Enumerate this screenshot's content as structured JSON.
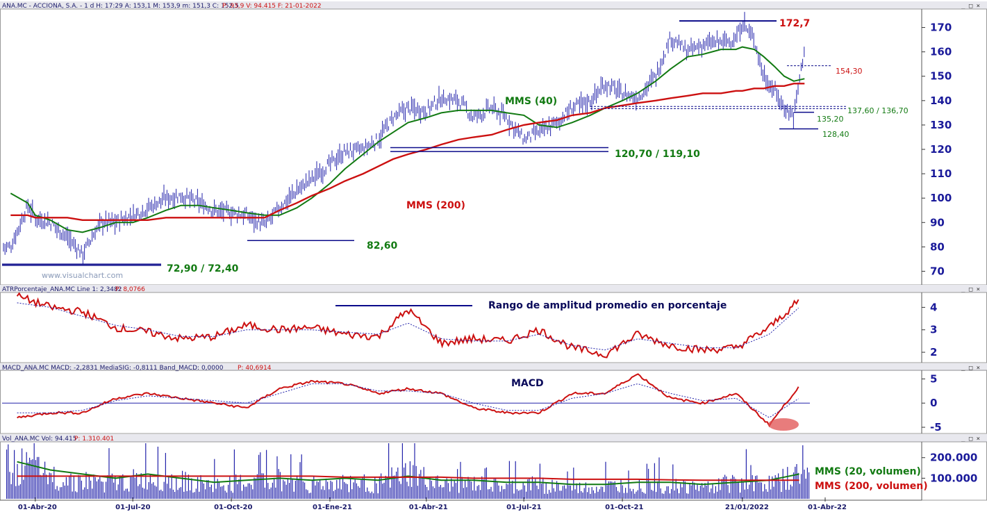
{
  "window": {
    "controls": "_ □ ×"
  },
  "panels": [
    {
      "id": "price",
      "header": "ANA.MC - ACCIONA, S.A. - 1 d H: 17:29 A: 153,1 M: 153,9 m: 151,3 C: 152,5",
      "header_red": "P: 93,9 V: 94.415 F: 21-01-2022",
      "y_ticks": [
        "70",
        "80",
        "90",
        "100",
        "110",
        "120",
        "130",
        "140",
        "150",
        "160",
        "170"
      ],
      "watermark": "www.visualchart.com"
    },
    {
      "id": "atr",
      "header": "ATRPorcentaje_ANA.MC Line 1: 2,3482",
      "header_red": "P: 8,0766",
      "title": "Rango de amplitud promedio en porcentaje",
      "y_ticks": [
        "2",
        "3",
        "4"
      ]
    },
    {
      "id": "macd",
      "header": "MACD_ANA.MC MACD: -2,2831 MediaSIG: -0,8111 Band_MACD: 0,0000",
      "header_red": "P: 40,6914",
      "title": "MACD",
      "y_ticks": [
        "-5",
        "0",
        "5"
      ]
    },
    {
      "id": "volume",
      "header": "Vol_ANA.MC Vol: 94.415",
      "header_red": "P: 1.310.401",
      "y_ticks": [
        "100.000",
        "200.000"
      ],
      "legend": [
        {
          "label": "MMS (20, volumen)",
          "color": "#127a12"
        },
        {
          "label": "MMS (200, volumen)",
          "color": "#cc1010"
        }
      ]
    }
  ],
  "x_ticks": [
    "01-Abr-20",
    "01-Jul-20",
    "01-Oct-20",
    "01-Ene-21",
    "01-Abr-21",
    "01-Jul-21",
    "01-Oct-21",
    "21/01/2022",
    "01-Abr-22"
  ],
  "annotations": {
    "high": "172,7",
    "r1": "154,30",
    "s1": "137,60 / 136,70",
    "s2": "135,20",
    "s3": "128,40",
    "s4": "120,70 / 119,10",
    "s5": "82,60",
    "s6": "72,90 / 72,40",
    "mms40": "MMS (40)",
    "mms200": "MMS (200)"
  },
  "colors": {
    "bars": "#2222aa",
    "mms40": "#127a12",
    "mms200": "#cc1010",
    "axis": "#1a1a9a",
    "levels": "#0a0a8a"
  },
  "chart_data": [
    {
      "type": "ohlc",
      "panel": "price",
      "ylim": [
        65,
        177
      ],
      "x": [
        "2020-03-09",
        "2020-03-25",
        "2020-04-01",
        "2020-04-15",
        "2020-05-01",
        "2020-05-15",
        "2020-06-01",
        "2020-06-15",
        "2020-07-01",
        "2020-07-15",
        "2020-08-01",
        "2020-08-15",
        "2020-09-01",
        "2020-09-15",
        "2020-10-01",
        "2020-10-15",
        "2020-11-01",
        "2020-11-15",
        "2020-12-01",
        "2020-12-15",
        "2021-01-01",
        "2021-01-15",
        "2021-02-01",
        "2021-02-15",
        "2021-03-01",
        "2021-03-15",
        "2021-04-01",
        "2021-04-15",
        "2021-05-01",
        "2021-05-15",
        "2021-06-01",
        "2021-06-15",
        "2021-07-01",
        "2021-07-15",
        "2021-08-01",
        "2021-08-15",
        "2021-09-01",
        "2021-09-15",
        "2021-10-01",
        "2021-10-15",
        "2021-11-01",
        "2021-11-15",
        "2021-12-01",
        "2021-12-15",
        "2022-01-01",
        "2022-01-15",
        "2022-01-21",
        "2022-02-01",
        "2022-02-10",
        "2022-02-20",
        "2022-03-01",
        "2022-03-10",
        "2022-03-20"
      ],
      "close": [
        80,
        97,
        92,
        90,
        84,
        77,
        90,
        90,
        93,
        96,
        100,
        101,
        98,
        95,
        94,
        93,
        89,
        96,
        103,
        108,
        114,
        119,
        120,
        124,
        133,
        137,
        136,
        141,
        140,
        133,
        137,
        133,
        124,
        127,
        131,
        137,
        140,
        147,
        143,
        141,
        150,
        166,
        160,
        163,
        164,
        165,
        172,
        165,
        150,
        144,
        137,
        134,
        162
      ],
      "series_overlays": [
        {
          "name": "MMS (40)",
          "values": [
            102,
            98,
            93,
            91,
            87,
            86,
            88,
            90,
            90,
            92,
            95,
            97,
            97,
            96,
            95,
            94,
            93,
            93,
            96,
            100,
            106,
            112,
            118,
            123,
            127,
            131,
            133,
            135,
            136,
            136,
            136,
            135,
            134,
            130,
            129,
            131,
            134,
            137,
            140,
            143,
            148,
            153,
            158,
            159,
            161,
            161,
            162,
            161,
            158,
            154,
            150,
            148,
            149
          ]
        },
        {
          "name": "MMS (200)",
          "values": [
            93,
            93,
            92,
            92,
            92,
            91,
            91,
            91,
            91,
            91,
            92,
            92,
            92,
            92,
            92,
            92,
            92,
            95,
            98,
            101,
            104,
            107,
            110,
            113,
            116,
            118,
            120,
            122,
            124,
            125,
            126,
            128,
            130,
            131,
            132,
            134,
            135,
            137,
            138,
            139,
            140,
            141,
            142,
            143,
            143,
            144,
            144,
            145,
            145,
            146,
            146,
            147,
            147
          ]
        }
      ],
      "levels": [
        172.7,
        154.3,
        137.6,
        136.7,
        135.2,
        128.4,
        120.7,
        119.1,
        82.6,
        72.9,
        72.4
      ]
    },
    {
      "type": "line",
      "panel": "atr",
      "title": "Rango de amplitud promedio en porcentaje",
      "ylim": [
        1.6,
        4.6
      ],
      "x": [
        "2020-03",
        "2020-04",
        "2020-05",
        "2020-06",
        "2020-07",
        "2020-08",
        "2020-09",
        "2020-10",
        "2020-11",
        "2020-12",
        "2021-01",
        "2021-02",
        "2021-03",
        "2021-04",
        "2021-05",
        "2021-06",
        "2021-07",
        "2021-08",
        "2021-09",
        "2021-10",
        "2021-11",
        "2021-12",
        "2022-01",
        "2022-02",
        "2022-03"
      ],
      "series": [
        {
          "values": [
            4.5,
            4.0,
            3.8,
            3.1,
            2.9,
            2.6,
            2.7,
            3.2,
            3.0,
            3.1,
            2.8,
            2.7,
            3.9,
            2.4,
            2.6,
            2.5,
            3.0,
            2.2,
            1.9,
            2.8,
            2.3,
            2.1,
            2.2,
            3.1,
            4.3
          ]
        },
        {
          "values": [
            4.2,
            4.0,
            3.6,
            3.2,
            3.0,
            2.7,
            2.7,
            3.0,
            3.0,
            3.0,
            2.9,
            2.8,
            3.3,
            2.6,
            2.5,
            2.5,
            2.8,
            2.3,
            2.1,
            2.6,
            2.4,
            2.2,
            2.2,
            2.8,
            4.0
          ]
        }
      ]
    },
    {
      "type": "line",
      "panel": "macd",
      "title": "MACD",
      "ylim": [
        -6,
        6.5
      ],
      "x": [
        "2020-03",
        "2020-04",
        "2020-05",
        "2020-06",
        "2020-07",
        "2020-08",
        "2020-09",
        "2020-10",
        "2020-11",
        "2020-12",
        "2021-01",
        "2021-02",
        "2021-03",
        "2021-04",
        "2021-05",
        "2021-06",
        "2021-07",
        "2021-08",
        "2021-09",
        "2021-10",
        "2021-11",
        "2021-12",
        "2022-01",
        "2022-02",
        "2022-03"
      ],
      "series": [
        {
          "values": [
            -3,
            -2,
            -2,
            1,
            2,
            1,
            0,
            -1,
            3,
            4.5,
            4,
            2,
            3,
            2,
            -1,
            -2,
            -2,
            2,
            2,
            6,
            1,
            0,
            2,
            -4.5,
            3.5
          ]
        },
        {
          "values": [
            -2,
            -2,
            -1.5,
            0.5,
            1.5,
            1,
            0.5,
            0,
            2,
            4,
            4,
            2.5,
            2.5,
            2,
            0,
            -1.5,
            -1.5,
            1,
            2,
            4,
            2,
            0.5,
            1,
            -3,
            1
          ]
        }
      ]
    },
    {
      "type": "bar",
      "panel": "volume",
      "ylim": [
        0,
        270000
      ],
      "x": [
        "2020-03",
        "2020-04",
        "2020-05",
        "2020-06",
        "2020-07",
        "2020-08",
        "2020-09",
        "2020-10",
        "2020-11",
        "2020-12",
        "2021-01",
        "2021-02",
        "2021-03",
        "2021-04",
        "2021-05",
        "2021-06",
        "2021-07",
        "2021-08",
        "2021-09",
        "2021-10",
        "2021-11",
        "2021-12",
        "2022-01",
        "2022-02",
        "2022-03"
      ],
      "values": [
        230000,
        150000,
        120000,
        110000,
        140000,
        120000,
        90000,
        110000,
        130000,
        100000,
        110000,
        100000,
        180000,
        90000,
        100000,
        80000,
        100000,
        70000,
        80000,
        100000,
        90000,
        80000,
        120000,
        100000,
        160000
      ],
      "series_overlays": [
        {
          "name": "MMS (20, volumen)",
          "values": [
            180000,
            140000,
            120000,
            100000,
            120000,
            100000,
            80000,
            90000,
            100000,
            90000,
            100000,
            90000,
            110000,
            90000,
            90000,
            80000,
            80000,
            70000,
            70000,
            80000,
            80000,
            70000,
            80000,
            90000,
            120000
          ]
        },
        {
          "name": "MMS (200, volumen)",
          "values": [
            110000,
            110000,
            110000,
            110000,
            110000,
            110000,
            110000,
            110000,
            110000,
            110000,
            105000,
            105000,
            105000,
            105000,
            100000,
            100000,
            100000,
            95000,
            95000,
            95000,
            92000,
            90000,
            90000,
            90000,
            90000
          ]
        }
      ]
    }
  ]
}
